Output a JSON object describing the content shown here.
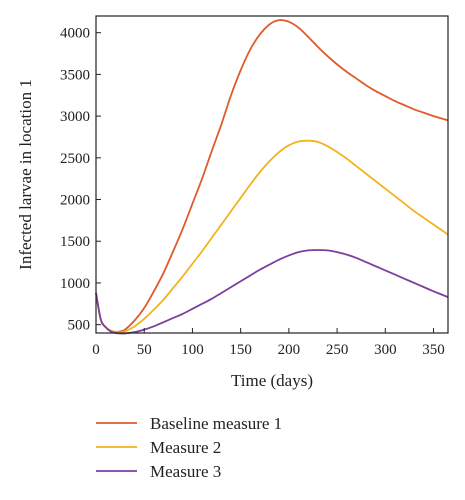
{
  "chart_data": {
    "type": "line",
    "xlabel": "Time (days)",
    "ylabel": "Infected larvae in location 1",
    "xlim": [
      0,
      365
    ],
    "ylim": [
      400,
      4200
    ],
    "xticks": [
      0,
      50,
      100,
      150,
      200,
      250,
      300,
      350
    ],
    "yticks": [
      500,
      1000,
      1500,
      2000,
      2500,
      3000,
      3500,
      4000
    ],
    "grid": false,
    "legend_position": "below",
    "series": [
      {
        "name": "Baseline measure 1",
        "color": "#e05a2b",
        "x": [
          0,
          5,
          10,
          15,
          20,
          25,
          30,
          40,
          50,
          60,
          70,
          80,
          90,
          100,
          110,
          120,
          130,
          140,
          150,
          160,
          170,
          180,
          190,
          200,
          210,
          220,
          230,
          240,
          250,
          260,
          270,
          280,
          290,
          300,
          310,
          320,
          330,
          340,
          350,
          365
        ],
        "y": [
          880,
          560,
          470,
          430,
          415,
          420,
          440,
          550,
          700,
          900,
          1120,
          1380,
          1650,
          1950,
          2250,
          2580,
          2900,
          3250,
          3550,
          3800,
          3980,
          4100,
          4150,
          4130,
          4060,
          3950,
          3830,
          3720,
          3620,
          3530,
          3450,
          3370,
          3300,
          3240,
          3180,
          3130,
          3080,
          3040,
          3000,
          2950
        ]
      },
      {
        "name": "Measure 2",
        "color": "#f2b31c",
        "x": [
          0,
          5,
          10,
          15,
          20,
          25,
          30,
          40,
          50,
          60,
          70,
          80,
          90,
          100,
          110,
          120,
          130,
          140,
          150,
          160,
          170,
          180,
          190,
          200,
          210,
          220,
          230,
          240,
          250,
          260,
          270,
          280,
          290,
          300,
          310,
          320,
          330,
          340,
          350,
          365
        ],
        "y": [
          880,
          560,
          470,
          430,
          412,
          410,
          420,
          480,
          570,
          680,
          800,
          940,
          1080,
          1230,
          1380,
          1540,
          1700,
          1860,
          2020,
          2180,
          2330,
          2460,
          2570,
          2650,
          2695,
          2705,
          2690,
          2640,
          2570,
          2490,
          2400,
          2310,
          2220,
          2130,
          2040,
          1950,
          1860,
          1780,
          1700,
          1580
        ]
      },
      {
        "name": "Measure 3",
        "color": "#7b3fa0",
        "x": [
          0,
          5,
          10,
          15,
          20,
          25,
          30,
          40,
          50,
          60,
          70,
          80,
          90,
          100,
          110,
          120,
          130,
          140,
          150,
          160,
          170,
          180,
          190,
          200,
          210,
          220,
          230,
          240,
          250,
          260,
          270,
          280,
          290,
          300,
          310,
          320,
          330,
          340,
          350,
          365
        ],
        "y": [
          880,
          560,
          470,
          420,
          400,
          395,
          395,
          410,
          440,
          480,
          530,
          580,
          630,
          690,
          750,
          810,
          880,
          950,
          1020,
          1090,
          1160,
          1220,
          1280,
          1330,
          1370,
          1390,
          1395,
          1390,
          1370,
          1340,
          1300,
          1250,
          1200,
          1150,
          1100,
          1050,
          1000,
          950,
          900,
          830
        ]
      }
    ]
  }
}
